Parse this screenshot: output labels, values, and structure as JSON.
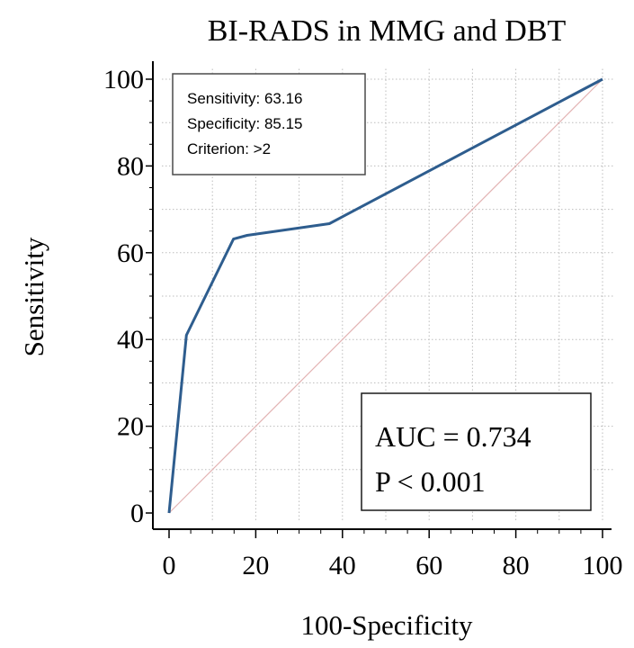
{
  "chart_data": {
    "type": "line",
    "title": "BI-RADS in MMG and DBT",
    "xlabel": "100-Specificity",
    "ylabel": "Sensitivity",
    "xlim": [
      0,
      100
    ],
    "ylim": [
      0,
      100
    ],
    "x_ticks": [
      "0",
      "20",
      "40",
      "60",
      "80",
      "100"
    ],
    "y_ticks": [
      "0",
      "20",
      "40",
      "60",
      "80",
      "100"
    ],
    "grid": true,
    "series": [
      {
        "kind": "roc-curve",
        "color": "#2e5d8e",
        "x": [
          0,
          4,
          14.85,
          18,
          37,
          100
        ],
        "y": [
          0,
          41,
          63.16,
          64,
          66.7,
          100
        ]
      },
      {
        "kind": "reference-diagonal",
        "color": "#e3b3b3",
        "x": [
          0,
          100
        ],
        "y": [
          0,
          100
        ]
      }
    ],
    "annotations": {
      "criterion_box": [
        "Sensitivity: 63.16",
        "Specificity: 85.15",
        "Criterion: >2"
      ],
      "auc_box": [
        "AUC = 0.734",
        "P < 0.001"
      ]
    }
  }
}
